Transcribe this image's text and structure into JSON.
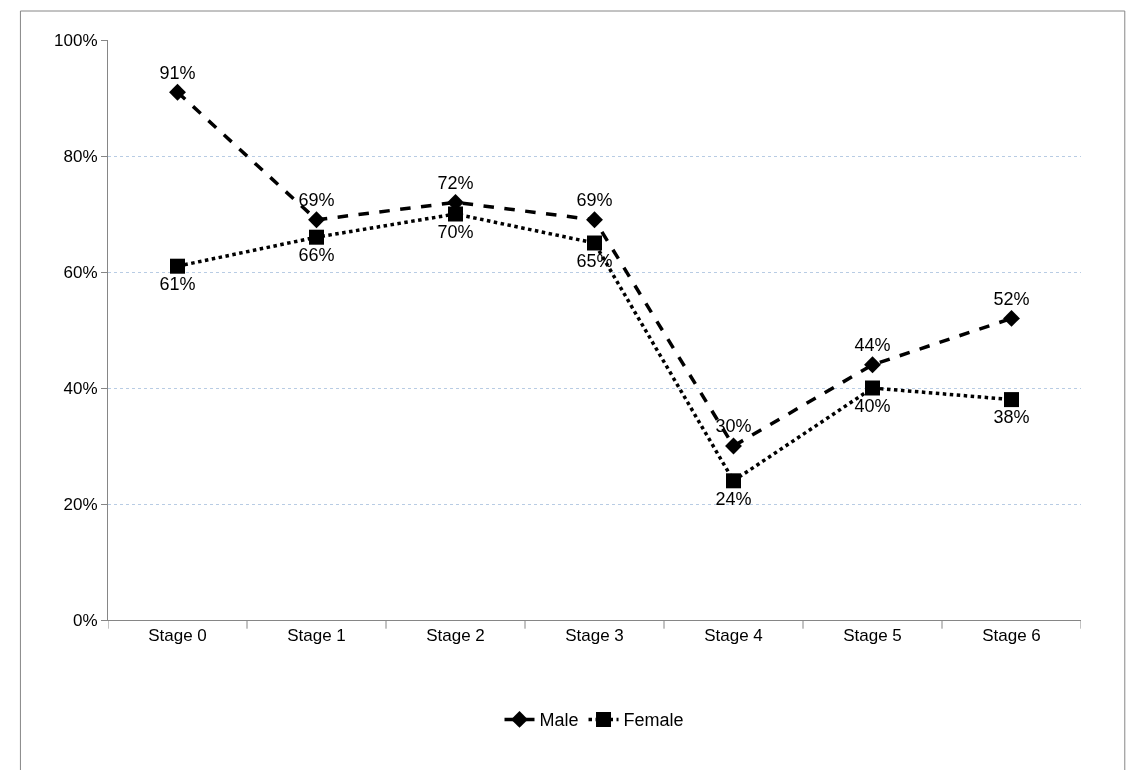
{
  "chart_data": {
    "type": "line",
    "categories": [
      "Stage 0",
      "Stage 1",
      "Stage 2",
      "Stage 3",
      "Stage 4",
      "Stage 5",
      "Stage 6"
    ],
    "series": [
      {
        "name": "Male",
        "color": "#000000",
        "values": [
          91,
          69,
          72,
          69,
          30,
          44,
          52
        ],
        "value_labels": [
          "91%",
          "69%",
          "72%",
          "69%",
          "30%",
          "44%",
          "52%"
        ],
        "marker": "diamond",
        "line_style": "dashed"
      },
      {
        "name": "Female",
        "color": "#000000",
        "values": [
          61,
          66,
          70,
          65,
          24,
          40,
          38
        ],
        "value_labels": [
          "61%",
          "66%",
          "70%",
          "65%",
          "24%",
          "40%",
          "38%"
        ],
        "marker": "square",
        "line_style": "dotted"
      }
    ],
    "ylim": [
      0,
      100
    ],
    "yticks": [
      {
        "value": 0,
        "label": "0%"
      },
      {
        "value": 20,
        "label": "20%"
      },
      {
        "value": 40,
        "label": "40%"
      },
      {
        "value": 60,
        "label": "60%"
      },
      {
        "value": 80,
        "label": "80%"
      },
      {
        "value": 100,
        "label": "100%"
      }
    ],
    "grid": "y",
    "legend": "bottom"
  }
}
